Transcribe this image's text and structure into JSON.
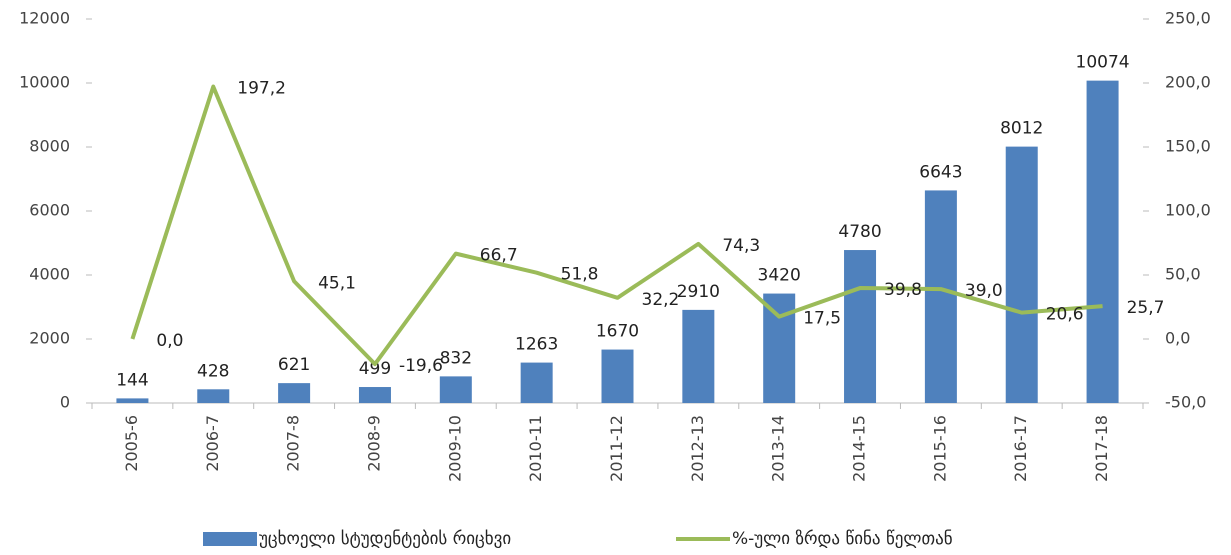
{
  "chart_data": {
    "type": "bar_line",
    "categories": [
      "2005-6",
      "2006-7",
      "2007-8",
      "2008-9",
      "2009-10",
      "2010-11",
      "2011-12",
      "2012-13",
      "2013-14",
      "2014-15",
      "2015-16",
      "2016-17",
      "2017-18"
    ],
    "series": [
      {
        "name": "უცხოელი სტუდენტების რიცხვი",
        "type": "bar",
        "color": "#4f81bd",
        "values": [
          144,
          428,
          621,
          499,
          832,
          1263,
          1670,
          2910,
          3420,
          4780,
          6643,
          8012,
          10074
        ]
      },
      {
        "name": "%-ული ზრდა წინა წელთან",
        "type": "line",
        "color": "#9bbb59",
        "axis": "y2",
        "values": [
          0.0,
          197.2,
          45.1,
          -19.6,
          66.7,
          51.8,
          32.2,
          74.3,
          17.5,
          39.8,
          39.0,
          20.6,
          25.7
        ],
        "value_labels": [
          "0,0",
          "197,2",
          "45,1",
          "-19,6",
          "66,7",
          "51,8",
          "32,2",
          "74,3",
          "17,5",
          "39,8",
          "39,0",
          "20,6",
          "25,7"
        ]
      }
    ],
    "ylim": [
      0,
      12000
    ],
    "yticks": [
      0,
      2000,
      4000,
      6000,
      8000,
      10000,
      12000
    ],
    "y2lim": [
      -50,
      250
    ],
    "y2ticks": [
      {
        "value": -50,
        "label": "-50,0"
      },
      {
        "value": 0,
        "label": "0,0"
      },
      {
        "value": 50,
        "label": "50,0"
      },
      {
        "value": 100,
        "label": "100,0"
      },
      {
        "value": 150,
        "label": "150,0"
      },
      {
        "value": 200,
        "label": "200,0"
      },
      {
        "value": 250,
        "label": "250,0"
      }
    ],
    "grid": false,
    "legend": "bottom"
  }
}
